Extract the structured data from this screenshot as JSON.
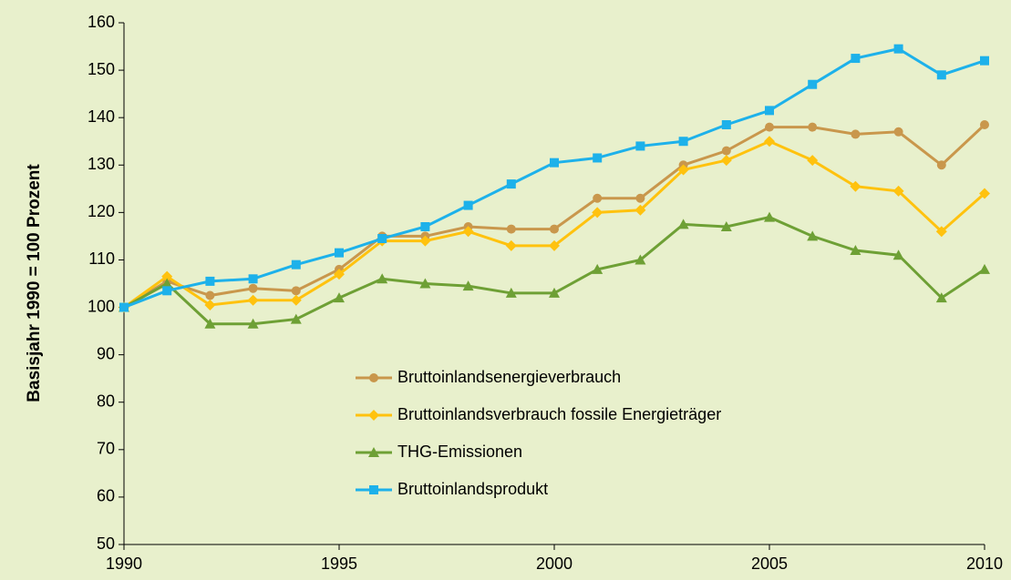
{
  "chart_data": {
    "type": "line",
    "ylabel": "Basisjahr 1990 = 100 Prozent",
    "x": [
      1990,
      1991,
      1992,
      1993,
      1994,
      1995,
      1996,
      1997,
      1998,
      1999,
      2000,
      2001,
      2002,
      2003,
      2004,
      2005,
      2006,
      2007,
      2008,
      2009,
      2010
    ],
    "xlim": [
      1990,
      2010
    ],
    "xticks": [
      1990,
      1995,
      2000,
      2005,
      2010
    ],
    "ylim": [
      50,
      160
    ],
    "yticks": [
      50,
      60,
      70,
      80,
      90,
      100,
      110,
      120,
      130,
      140,
      150,
      160
    ],
    "grid": false,
    "background": "#e8f0cc",
    "series": [
      {
        "name": "Bruttoinlandsenergieverbrauch",
        "color": "#c9974c",
        "marker": "circle",
        "values": [
          100,
          105.5,
          102.5,
          104,
          103.5,
          108,
          115,
          115,
          117,
          116.5,
          116.5,
          123,
          123,
          130,
          133,
          138,
          138,
          136.5,
          137,
          130,
          138.5
        ]
      },
      {
        "name": "Bruttoinlandsverbrauch fossile Energieträger",
        "color": "#ffc20e",
        "marker": "diamond",
        "values": [
          100,
          106.5,
          100.5,
          101.5,
          101.5,
          107,
          114,
          114,
          116,
          113,
          113,
          120,
          120.5,
          129,
          131,
          135,
          131,
          125.5,
          124.5,
          116,
          124
        ]
      },
      {
        "name": "THG-Emissionen",
        "color": "#6ea035",
        "marker": "triangle",
        "values": [
          100,
          105,
          96.5,
          96.5,
          97.5,
          102,
          106,
          105,
          104.5,
          103,
          103,
          108,
          110,
          117.5,
          117,
          119,
          115,
          112,
          111,
          102,
          108
        ]
      },
      {
        "name": "Bruttoinlandsprodukt",
        "color": "#1db1ea",
        "marker": "square",
        "values": [
          100,
          103.5,
          105.5,
          106,
          109,
          111.5,
          114.5,
          117,
          121.5,
          126,
          130.5,
          131.5,
          134,
          135,
          138.5,
          141.5,
          147,
          152.5,
          154.5,
          149,
          152
        ]
      }
    ]
  }
}
